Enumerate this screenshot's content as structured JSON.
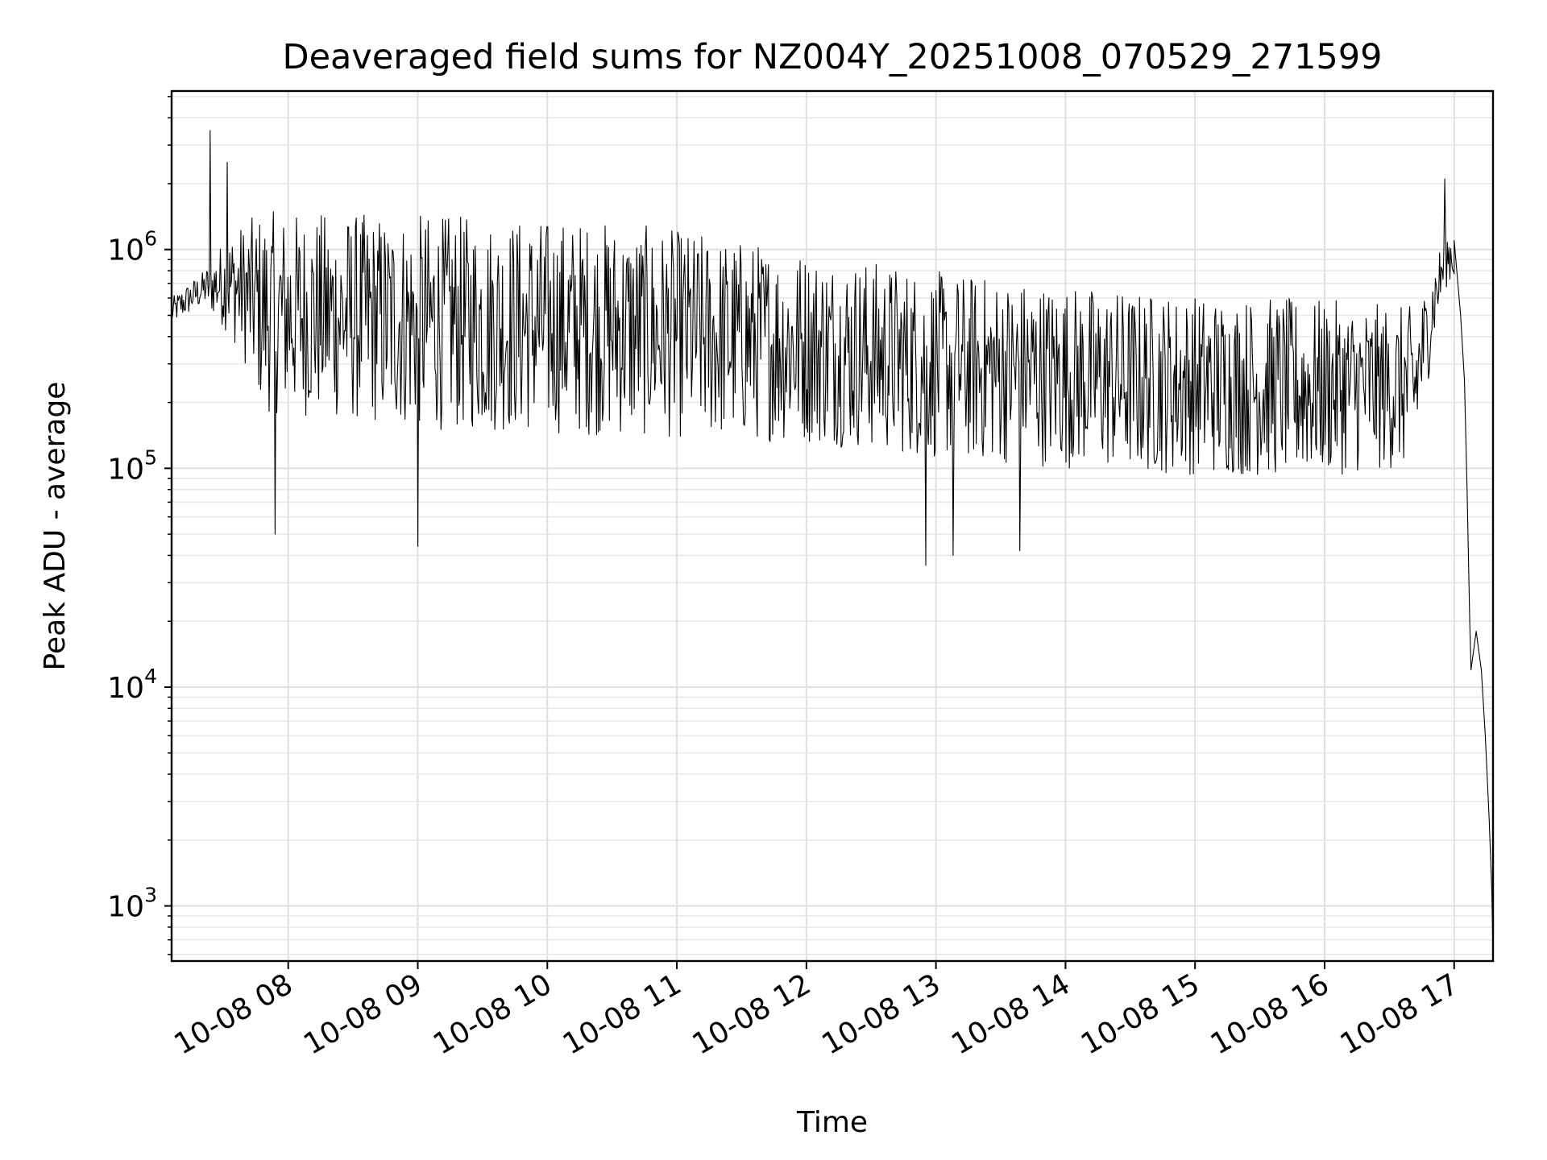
{
  "chart_data": {
    "type": "line",
    "title": "Deaveraged field sums for NZ004Y_20251008_070529_271599",
    "xlabel": "Time",
    "ylabel": "Peak ADU - average",
    "yscale": "log",
    "ylim": [
      560,
      5300000
    ],
    "xlim_hours": [
      7.1,
      17.3
    ],
    "grid": true,
    "line_color": "#000000",
    "x_ticks": [
      {
        "hour": 8,
        "label": "10-08 08"
      },
      {
        "hour": 9,
        "label": "10-08 09"
      },
      {
        "hour": 10,
        "label": "10-08 10"
      },
      {
        "hour": 11,
        "label": "10-08 11"
      },
      {
        "hour": 12,
        "label": "10-08 12"
      },
      {
        "hour": 13,
        "label": "10-08 13"
      },
      {
        "hour": 14,
        "label": "10-08 14"
      },
      {
        "hour": 15,
        "label": "10-08 15"
      },
      {
        "hour": 16,
        "label": "10-08 16"
      },
      {
        "hour": 17,
        "label": "10-08 17"
      }
    ],
    "y_ticks": [
      {
        "value": 1000,
        "base": "10",
        "exp": "3"
      },
      {
        "value": 10000,
        "base": "10",
        "exp": "4"
      },
      {
        "value": 100000,
        "base": "10",
        "exp": "5"
      },
      {
        "value": 1000000,
        "base": "10",
        "exp": "6"
      }
    ],
    "trend": [
      {
        "t": 7.1,
        "lo": 450000,
        "hi": 600000
      },
      {
        "t": 7.35,
        "lo": 550000,
        "hi": 800000
      },
      {
        "t": 7.55,
        "lo": 400000,
        "hi": 1200000
      },
      {
        "t": 7.8,
        "lo": 180000,
        "hi": 1500000
      },
      {
        "t": 9.0,
        "lo": 150000,
        "hi": 1450000
      },
      {
        "t": 10.5,
        "lo": 140000,
        "hi": 1350000
      },
      {
        "t": 12.0,
        "lo": 130000,
        "hi": 1000000
      },
      {
        "t": 13.0,
        "lo": 110000,
        "hi": 800000
      },
      {
        "t": 14.5,
        "lo": 95000,
        "hi": 650000
      },
      {
        "t": 15.8,
        "lo": 90000,
        "hi": 600000
      },
      {
        "t": 16.7,
        "lo": 100000,
        "hi": 550000
      },
      {
        "t": 16.8,
        "lo": 250000,
        "hi": 700000
      },
      {
        "t": 16.95,
        "lo": 700000,
        "hi": 1250000
      }
    ],
    "spikes": [
      {
        "t": 7.4,
        "v": 3500000
      },
      {
        "t": 7.53,
        "v": 2500000
      },
      {
        "t": 16.93,
        "v": 2100000
      },
      {
        "t": 7.9,
        "v": 50000
      },
      {
        "t": 9.0,
        "v": 44000
      },
      {
        "t": 12.92,
        "v": 36000
      },
      {
        "t": 13.13,
        "v": 40000
      },
      {
        "t": 13.65,
        "v": 42000
      }
    ],
    "tail": [
      {
        "t": 17.0,
        "v": 1100000
      },
      {
        "t": 17.05,
        "v": 500000
      },
      {
        "t": 17.08,
        "v": 250000
      },
      {
        "t": 17.1,
        "v": 80000
      },
      {
        "t": 17.12,
        "v": 20000
      },
      {
        "t": 17.13,
        "v": 12000
      },
      {
        "t": 17.17,
        "v": 18000
      },
      {
        "t": 17.21,
        "v": 12000
      },
      {
        "t": 17.24,
        "v": 6000
      },
      {
        "t": 17.27,
        "v": 2500
      },
      {
        "t": 17.29,
        "v": 1200
      },
      {
        "t": 17.3,
        "v": 600
      }
    ]
  }
}
